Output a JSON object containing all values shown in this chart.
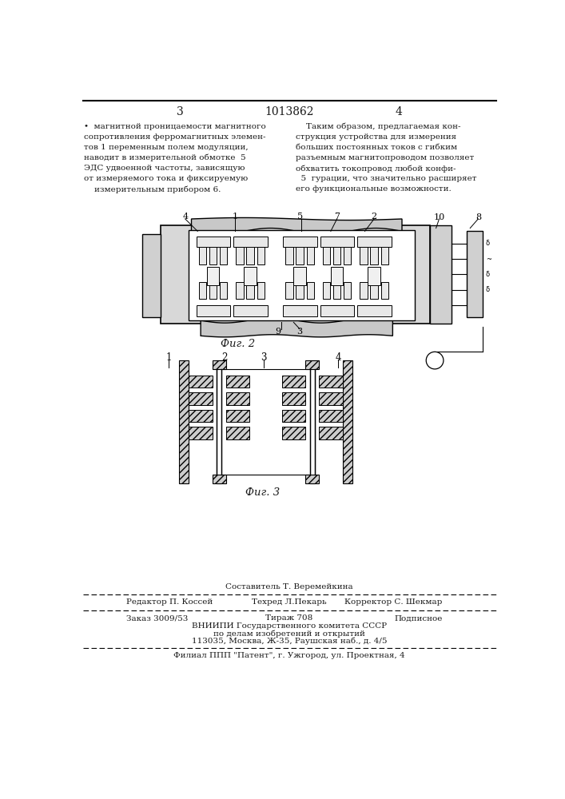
{
  "page_number_left": "3",
  "page_number_center": "1013862",
  "page_number_right": "4",
  "fig2_caption": "Фиг. 2",
  "fig3_caption": "Фиг. 3",
  "footer_compiler": "Составитель Т. Веремейкина",
  "footer_line1_left": "Редактор П. Коссей",
  "footer_line1_center": "Техред Л.Пекарь",
  "footer_line1_right": "Корректор С. Шекмар",
  "footer_line2_left": "Заказ 3009/53",
  "footer_line2_center": "Тираж 708",
  "footer_line2_right": "Подписное",
  "footer_line3": "ВНИИПИ Государственного комитета СССР",
  "footer_line4": "по делам изобретений и открытий",
  "footer_line5": "113035, Москва, Ж-35, Раушская наб., д. 4/5",
  "footer_line6": "Филиал ППП \"Патент\", г. Ужгород, ул. Проектная, 4",
  "bg_color": "#ffffff",
  "text_color": "#1a1a1a",
  "line_color": "#000000"
}
